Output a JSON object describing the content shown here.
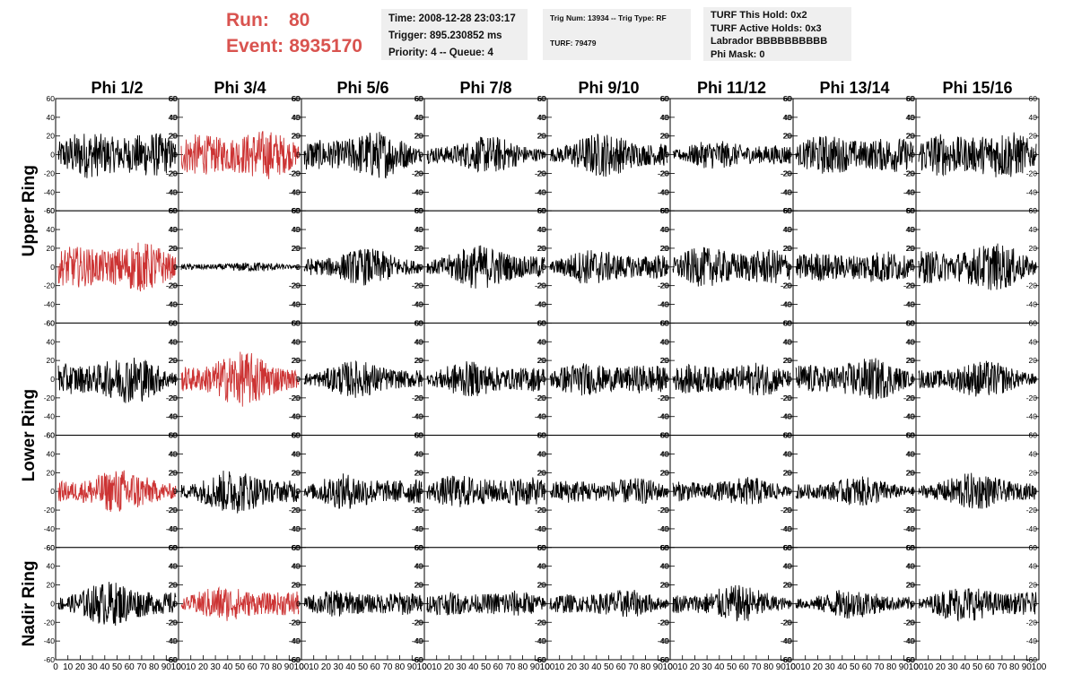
{
  "header": {
    "run_label": "Run:",
    "run_value": "80",
    "event_label": "Event:",
    "event_value": "8935170",
    "color": "#d9534f"
  },
  "info_time": {
    "line1": "Time: 2008-12-28 23:03:17",
    "line2": "Trigger: 895.230852 ms",
    "line3": "Priority: 4 -- Queue: 4"
  },
  "info_trig": {
    "line1": "Trig Num: 13934 -- Trig Type: RF",
    "line2": "TURF: 79479"
  },
  "info_turf": {
    "line1": "TURF This Hold: 0x2",
    "line2": "TURF Active Holds: 0x3",
    "line3": "Labrador BBBBBBBBBB",
    "line4": "Phi Mask: 0"
  },
  "chart_data": {
    "type": "line",
    "columns": [
      "Phi 1/2",
      "Phi 3/4",
      "Phi 5/6",
      "Phi 7/8",
      "Phi 9/10",
      "Phi 11/12",
      "Phi 13/14",
      "Phi 15/16"
    ],
    "ring_labels": [
      "Upper Ring",
      "Lower Ring",
      "Nadir Ring"
    ],
    "row_count": 5,
    "ylim": [
      -60,
      60
    ],
    "y_ticks": [
      -60,
      -40,
      -20,
      0,
      20,
      40,
      60
    ],
    "xlim": [
      0,
      100
    ],
    "x_tick_labels": [
      "0",
      "10",
      "20",
      "30",
      "40",
      "50",
      "60",
      "70",
      "80",
      "90",
      "100"
    ],
    "trace_color": "#000000",
    "triggered_color": "#cc3333",
    "red_panels": [
      [
        0,
        1
      ],
      [
        1,
        0
      ],
      [
        2,
        1
      ],
      [
        3,
        0
      ],
      [
        4,
        1
      ]
    ],
    "trace_amplitudes": [
      [
        22,
        22,
        20,
        15,
        18,
        12,
        18,
        22
      ],
      [
        22,
        4,
        15,
        18,
        15,
        18,
        15,
        20
      ],
      [
        20,
        22,
        15,
        15,
        15,
        15,
        18,
        15
      ],
      [
        18,
        18,
        15,
        15,
        12,
        12,
        12,
        15
      ],
      [
        18,
        15,
        12,
        12,
        12,
        15,
        12,
        15
      ]
    ]
  }
}
